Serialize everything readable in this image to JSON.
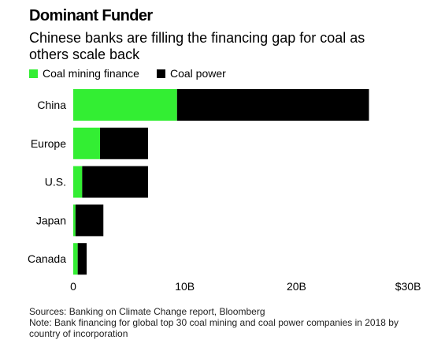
{
  "header": {
    "title": "Dominant Funder",
    "subtitle": "Chinese banks are filling the financing gap for coal as others scale back"
  },
  "legend": {
    "items": [
      {
        "label": "Coal mining finance",
        "color": "#33ee33"
      },
      {
        "label": "Coal power",
        "color": "#000000"
      }
    ]
  },
  "chart_data": {
    "type": "bar",
    "orientation": "horizontal",
    "stacked": true,
    "title": "Dominant Funder",
    "subtitle": "Chinese banks are filling the financing gap for coal as others scale back",
    "categories": [
      "China",
      "Europe",
      "U.S.",
      "Japan",
      "Canada"
    ],
    "series": [
      {
        "name": "Coal mining finance",
        "color": "#33ee33",
        "values": [
          9.3,
          2.4,
          0.8,
          0.2,
          0.4
        ]
      },
      {
        "name": "Coal power",
        "color": "#000000",
        "values": [
          17.2,
          4.3,
          5.9,
          2.5,
          0.8
        ]
      }
    ],
    "xlim": [
      0,
      30
    ],
    "xticks": [
      0,
      10,
      20,
      30
    ],
    "xtick_labels": [
      "0",
      "10B",
      "20B",
      "$30B"
    ],
    "grid": false,
    "legend_position": "top-left"
  },
  "footer": {
    "sources": "Sources: Banking on Climate Change report, Bloomberg",
    "note": "Note: Bank financing for global top 30 coal mining and coal power companies in 2018 by country of incorporation"
  }
}
